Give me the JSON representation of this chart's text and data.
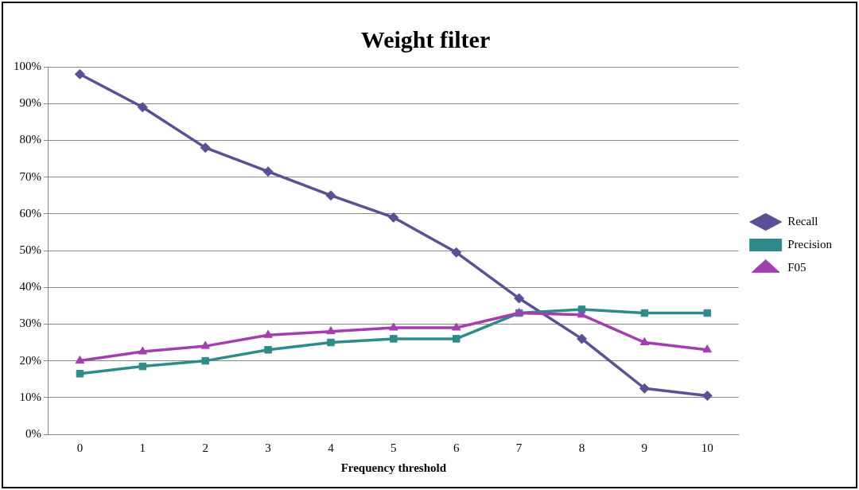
{
  "chart_data": {
    "type": "line",
    "title": "Weight filter",
    "xlabel": "Frequency threshold",
    "categories": [
      "0",
      "1",
      "2",
      "3",
      "4",
      "5",
      "6",
      "7",
      "8",
      "9",
      "10"
    ],
    "ylim": [
      0,
      100
    ],
    "yticks": [
      {
        "value": 0,
        "label": "0%"
      },
      {
        "value": 10,
        "label": "10%"
      },
      {
        "value": 20,
        "label": "20%"
      },
      {
        "value": 30,
        "label": "30%"
      },
      {
        "value": 40,
        "label": "40%"
      },
      {
        "value": 50,
        "label": "50%"
      },
      {
        "value": 60,
        "label": "60%"
      },
      {
        "value": 70,
        "label": "70%"
      },
      {
        "value": 80,
        "label": "80%"
      },
      {
        "value": 90,
        "label": "90%"
      },
      {
        "value": 100,
        "label": "100%"
      }
    ],
    "grid": "y",
    "legend": "right",
    "series": [
      {
        "name": "Recall",
        "color": "#5b4f96",
        "marker": "diamond",
        "values": [
          98,
          89,
          78,
          71.5,
          65,
          59,
          49.5,
          37,
          26,
          12.5,
          10.5
        ]
      },
      {
        "name": "Precision",
        "color": "#2f8a8a",
        "marker": "square",
        "values": [
          16.5,
          18.5,
          20,
          23,
          25,
          26,
          26,
          33,
          34,
          33,
          33
        ]
      },
      {
        "name": "F05",
        "color": "#a23fae",
        "marker": "triangle",
        "values": [
          20,
          22.5,
          24,
          27,
          28,
          29,
          29,
          33,
          32.5,
          25,
          23
        ]
      }
    ]
  }
}
